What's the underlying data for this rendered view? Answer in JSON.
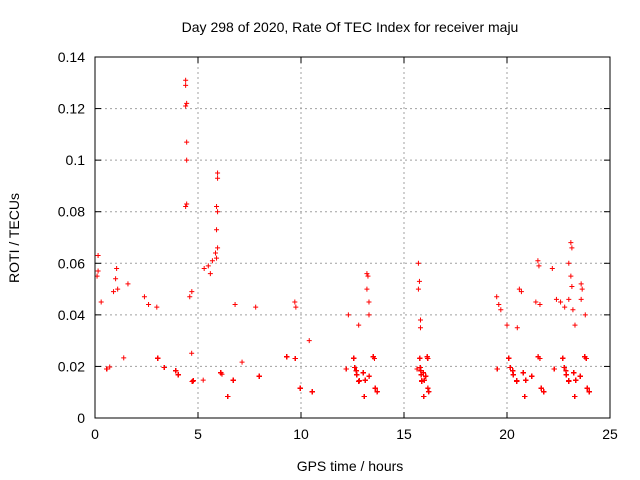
{
  "chart_data": {
    "type": "scatter",
    "title": "Day 298 of 2020, Rate Of TEC Index for receiver maju",
    "xlabel": "GPS time / hours",
    "ylabel": "ROTI / TECUs",
    "xlim": [
      0,
      25
    ],
    "ylim": [
      0,
      0.14
    ],
    "x_ticks": [
      0,
      5,
      10,
      15,
      20,
      25
    ],
    "x_tick_labels": [
      "0",
      "5",
      "10",
      "15",
      "20",
      "25"
    ],
    "y_ticks": [
      0,
      0.02,
      0.04,
      0.06,
      0.08,
      0.1,
      0.12,
      0.14
    ],
    "y_tick_labels": [
      "0",
      "0.02",
      "0.04",
      "0.06",
      "0.08",
      "0.1",
      "0.12",
      "0.14"
    ],
    "grid": true,
    "marker": "+",
    "marker_color": "#ff0000",
    "observation_windows_hours": [
      [
        0.0,
        10.6
      ],
      [
        12.1,
        13.7
      ],
      [
        15.6,
        16.2
      ],
      [
        19.4,
        21.8
      ],
      [
        22.2,
        24.0
      ]
    ],
    "typical_range": [
      0.005,
      0.03
    ],
    "notable_points": [
      {
        "x": 4.4,
        "y": 0.131
      },
      {
        "x": 4.4,
        "y": 0.129
      },
      {
        "x": 4.45,
        "y": 0.122
      },
      {
        "x": 4.4,
        "y": 0.121
      },
      {
        "x": 4.45,
        "y": 0.107
      },
      {
        "x": 4.45,
        "y": 0.1
      },
      {
        "x": 4.45,
        "y": 0.083
      },
      {
        "x": 4.4,
        "y": 0.082
      },
      {
        "x": 5.95,
        "y": 0.095
      },
      {
        "x": 5.95,
        "y": 0.093
      },
      {
        "x": 5.9,
        "y": 0.082
      },
      {
        "x": 5.95,
        "y": 0.08
      },
      {
        "x": 5.9,
        "y": 0.073
      },
      {
        "x": 5.95,
        "y": 0.066
      },
      {
        "x": 5.85,
        "y": 0.064
      },
      {
        "x": 5.9,
        "y": 0.062
      },
      {
        "x": 5.7,
        "y": 0.061
      },
      {
        "x": 5.5,
        "y": 0.059
      },
      {
        "x": 5.3,
        "y": 0.058
      },
      {
        "x": 5.6,
        "y": 0.056
      },
      {
        "x": 0.15,
        "y": 0.063
      },
      {
        "x": 0.15,
        "y": 0.057
      },
      {
        "x": 0.1,
        "y": 0.055
      },
      {
        "x": 1.05,
        "y": 0.058
      },
      {
        "x": 1.0,
        "y": 0.054
      },
      {
        "x": 1.1,
        "y": 0.05
      },
      {
        "x": 1.6,
        "y": 0.052
      },
      {
        "x": 0.9,
        "y": 0.049
      },
      {
        "x": 2.4,
        "y": 0.047
      },
      {
        "x": 2.6,
        "y": 0.044
      },
      {
        "x": 3.0,
        "y": 0.043
      },
      {
        "x": 0.3,
        "y": 0.045
      },
      {
        "x": 4.7,
        "y": 0.049
      },
      {
        "x": 4.6,
        "y": 0.047
      },
      {
        "x": 6.8,
        "y": 0.044
      },
      {
        "x": 7.8,
        "y": 0.043
      },
      {
        "x": 9.7,
        "y": 0.045
      },
      {
        "x": 9.75,
        "y": 0.043
      },
      {
        "x": 10.4,
        "y": 0.03
      },
      {
        "x": 12.3,
        "y": 0.04
      },
      {
        "x": 12.8,
        "y": 0.036
      },
      {
        "x": 13.2,
        "y": 0.056
      },
      {
        "x": 13.25,
        "y": 0.055
      },
      {
        "x": 13.2,
        "y": 0.05
      },
      {
        "x": 13.3,
        "y": 0.045
      },
      {
        "x": 13.3,
        "y": 0.04
      },
      {
        "x": 15.7,
        "y": 0.06
      },
      {
        "x": 15.75,
        "y": 0.053
      },
      {
        "x": 15.7,
        "y": 0.05
      },
      {
        "x": 15.8,
        "y": 0.038
      },
      {
        "x": 15.8,
        "y": 0.035
      },
      {
        "x": 19.5,
        "y": 0.047
      },
      {
        "x": 19.6,
        "y": 0.044
      },
      {
        "x": 19.7,
        "y": 0.042
      },
      {
        "x": 20.0,
        "y": 0.036
      },
      {
        "x": 20.5,
        "y": 0.035
      },
      {
        "x": 20.6,
        "y": 0.05
      },
      {
        "x": 20.7,
        "y": 0.049
      },
      {
        "x": 21.5,
        "y": 0.061
      },
      {
        "x": 21.55,
        "y": 0.059
      },
      {
        "x": 21.4,
        "y": 0.045
      },
      {
        "x": 21.6,
        "y": 0.044
      },
      {
        "x": 22.2,
        "y": 0.058
      },
      {
        "x": 22.4,
        "y": 0.046
      },
      {
        "x": 23.1,
        "y": 0.068
      },
      {
        "x": 23.15,
        "y": 0.066
      },
      {
        "x": 23.0,
        "y": 0.06
      },
      {
        "x": 23.1,
        "y": 0.055
      },
      {
        "x": 23.15,
        "y": 0.051
      },
      {
        "x": 23.0,
        "y": 0.046
      },
      {
        "x": 23.2,
        "y": 0.042
      },
      {
        "x": 23.3,
        "y": 0.036
      },
      {
        "x": 23.6,
        "y": 0.052
      },
      {
        "x": 23.65,
        "y": 0.05
      },
      {
        "x": 23.6,
        "y": 0.046
      },
      {
        "x": 22.6,
        "y": 0.045
      },
      {
        "x": 22.8,
        "y": 0.043
      },
      {
        "x": 23.8,
        "y": 0.04
      }
    ]
  }
}
